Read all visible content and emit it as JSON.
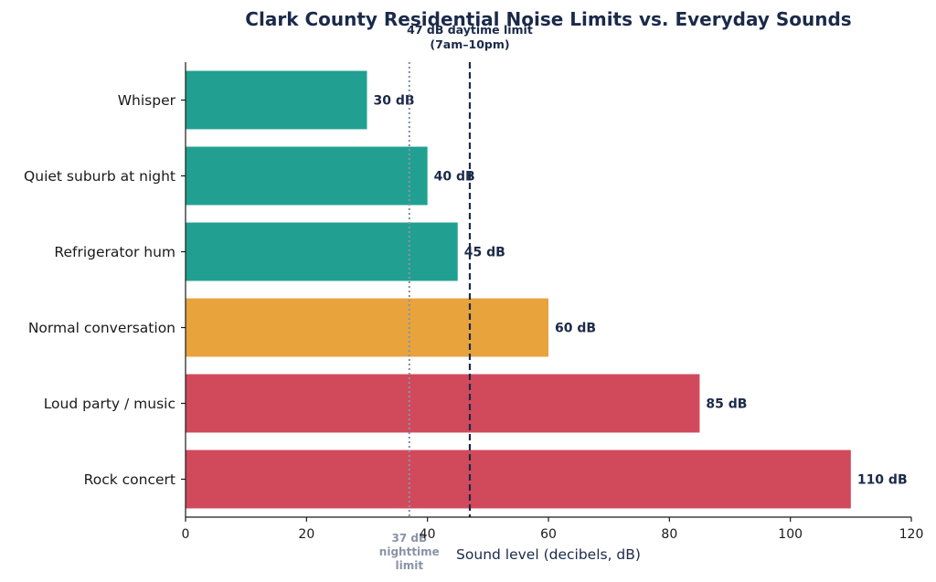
{
  "chart_data": {
    "type": "bar",
    "orientation": "horizontal",
    "title": "Clark County Residential Noise Limits vs. Everyday Sounds",
    "xlabel": "Sound level (decibels, dB)",
    "ylabel": "",
    "xlim": [
      0,
      120
    ],
    "xticks": [
      0,
      20,
      40,
      60,
      80,
      100,
      120
    ],
    "grid": false,
    "bars": [
      {
        "label": "Whisper",
        "value": 30,
        "value_label": "30 dB",
        "color": "#21a092"
      },
      {
        "label": "Quiet suburb at night",
        "value": 40,
        "value_label": "40 dB",
        "color": "#21a092"
      },
      {
        "label": "Refrigerator hum",
        "value": 45,
        "value_label": "45 dB",
        "color": "#21a092"
      },
      {
        "label": "Normal conversation",
        "value": 60,
        "value_label": "60 dB",
        "color": "#e8a33d"
      },
      {
        "label": "Loud party / music",
        "value": 85,
        "value_label": "85 dB",
        "color": "#d04a5c"
      },
      {
        "label": "Rock concert",
        "value": 110,
        "value_label": "110 dB",
        "color": "#d04a5c"
      }
    ],
    "reference_lines": [
      {
        "value": 47,
        "style": "dashed",
        "color": "#1b2a4a",
        "label_lines": [
          "47 dB daytime limit",
          "(7am–10pm)"
        ],
        "label_position": "top"
      },
      {
        "value": 37,
        "style": "dotted",
        "color": "#8a93a6",
        "label_lines": [
          "37 dB",
          "nighttime",
          "limit"
        ],
        "label_position": "bottom"
      }
    ]
  }
}
